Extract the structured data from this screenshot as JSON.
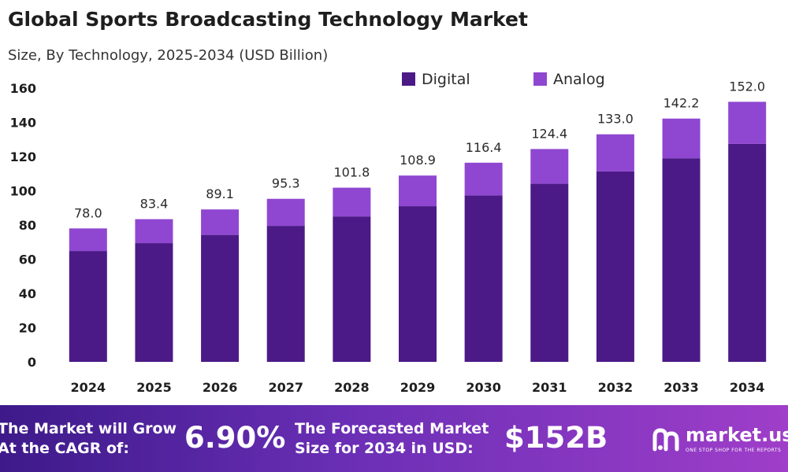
{
  "chart_data": {
    "type": "bar",
    "stacked": true,
    "title": "Global Sports Broadcasting Technology Market",
    "subtitle": "Size, By Technology, 2025-2034 (USD Billion)",
    "categories": [
      "2024",
      "2025",
      "2026",
      "2027",
      "2028",
      "2029",
      "2030",
      "2031",
      "2032",
      "2033",
      "2034"
    ],
    "series": [
      {
        "name": "Digital",
        "color": "#4c1a87",
        "values": [
          64.8,
          69.4,
          74.2,
          79.5,
          85.0,
          91.0,
          97.3,
          104.1,
          111.3,
          119.0,
          127.4
        ]
      },
      {
        "name": "Analog",
        "color": "#8f47d1",
        "values": [
          13.2,
          14.0,
          14.9,
          15.8,
          16.8,
          17.9,
          19.1,
          20.3,
          21.7,
          23.2,
          24.6
        ]
      }
    ],
    "totals": [
      "78.0",
      "83.4",
      "89.1",
      "95.3",
      "101.8",
      "108.9",
      "116.4",
      "124.4",
      "133.0",
      "142.2",
      "152.0"
    ],
    "ylim": [
      0,
      160
    ],
    "yticks": [
      0,
      20,
      40,
      60,
      80,
      100,
      120,
      140,
      160
    ],
    "xlabel": "",
    "ylabel": "",
    "legend_position": "top-right",
    "grid": false
  },
  "banner": {
    "cagr_label_line1": "The Market will Grow",
    "cagr_label_line2": "At the CAGR of:",
    "cagr_value": "6.90%",
    "forecast_label_line1": "The Forecasted Market",
    "forecast_label_line2": "Size for 2034 in USD:",
    "forecast_value": "$152B",
    "logo_text": "market.us",
    "logo_tagline": "ONE STOP SHOP FOR THE REPORTS",
    "logo_icon": "market-us-logo-icon"
  }
}
